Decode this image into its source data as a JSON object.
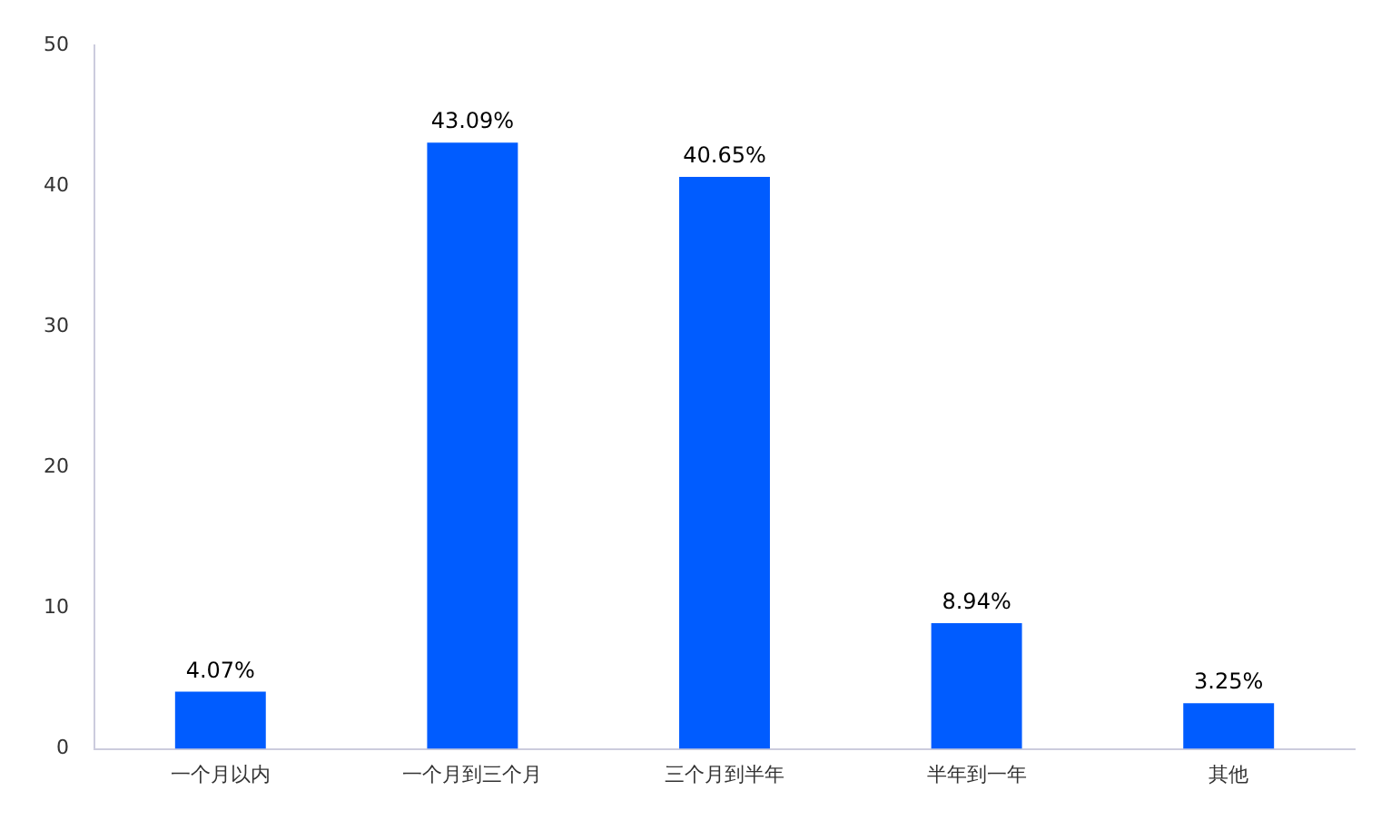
{
  "chart_data": {
    "type": "bar",
    "categories": [
      "一个月以内",
      "一个月到三个月",
      "三个月到半年",
      "半年到一年",
      "其他"
    ],
    "values": [
      4.07,
      43.09,
      40.65,
      8.94,
      3.25
    ],
    "value_labels": [
      "4.07%",
      "43.09%",
      "40.65%",
      "8.94%",
      "3.25%"
    ],
    "color": "#005cff",
    "ylim": [
      0,
      50
    ],
    "yticks": [
      0,
      10,
      20,
      30,
      40,
      50
    ],
    "grid": false,
    "legend": false
  }
}
